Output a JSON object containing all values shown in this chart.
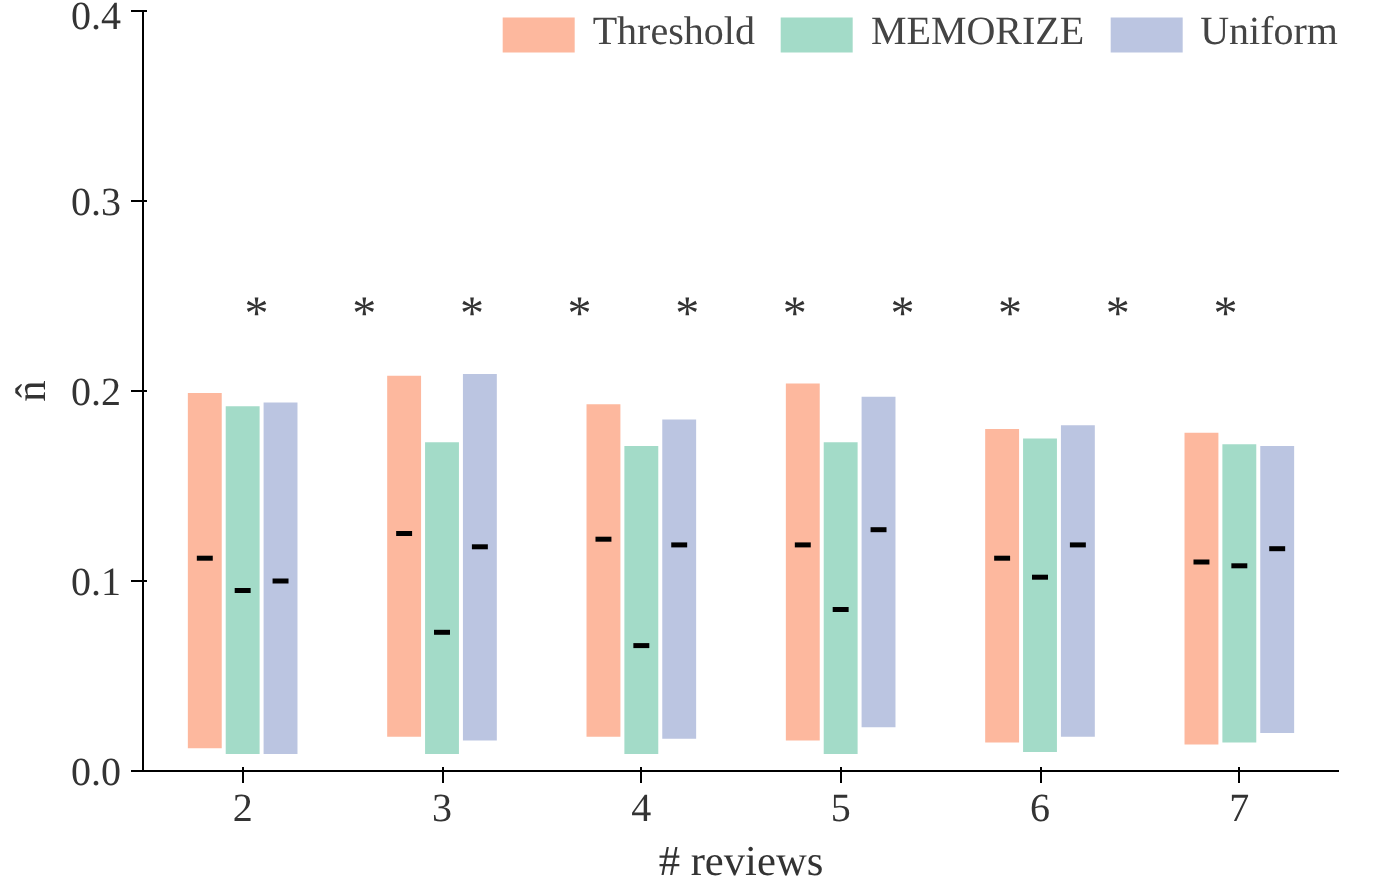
{
  "chart_data": {
    "type": "box",
    "xlabel": "# reviews",
    "ylabel": "n̂",
    "x": [
      2,
      3,
      4,
      5,
      6,
      7
    ],
    "xlim": [
      1.5,
      7.5
    ],
    "xticks": [
      2,
      3,
      4,
      5,
      6,
      7
    ],
    "ylim": [
      0,
      0.4
    ],
    "yticks": [
      {
        "value": 0,
        "label": "0.0"
      },
      0.1,
      0.2,
      0.3,
      0.4
    ],
    "grid": false,
    "legend": "top",
    "series": [
      {
        "name": "Threshold",
        "color": "#fdb89e",
        "boxes": [
          {
            "low": 0.012,
            "q1": 0.012,
            "median": 0.112,
            "q3": 0.199,
            "high": 0.199
          },
          {
            "low": 0.018,
            "q1": 0.018,
            "median": 0.125,
            "q3": 0.208,
            "high": 0.208
          },
          {
            "low": 0.018,
            "q1": 0.018,
            "median": 0.122,
            "q3": 0.193,
            "high": 0.193
          },
          {
            "low": 0.016,
            "q1": 0.016,
            "median": 0.119,
            "q3": 0.204,
            "high": 0.204
          },
          {
            "low": 0.015,
            "q1": 0.015,
            "median": 0.112,
            "q3": 0.18,
            "high": 0.18
          },
          {
            "low": 0.014,
            "q1": 0.014,
            "median": 0.11,
            "q3": 0.178,
            "high": 0.178
          }
        ]
      },
      {
        "name": "MEMORIZE",
        "color": "#a3dbc8",
        "boxes": [
          {
            "low": 0.009,
            "q1": 0.009,
            "median": 0.095,
            "q3": 0.192,
            "high": 0.192
          },
          {
            "low": 0.009,
            "q1": 0.009,
            "median": 0.073,
            "q3": 0.173,
            "high": 0.173
          },
          {
            "low": 0.009,
            "q1": 0.009,
            "median": 0.066,
            "q3": 0.171,
            "high": 0.171
          },
          {
            "low": 0.009,
            "q1": 0.009,
            "median": 0.085,
            "q3": 0.173,
            "high": 0.173
          },
          {
            "low": 0.01,
            "q1": 0.01,
            "median": 0.102,
            "q3": 0.175,
            "high": 0.175
          },
          {
            "low": 0.015,
            "q1": 0.015,
            "median": 0.108,
            "q3": 0.172,
            "high": 0.172
          }
        ]
      },
      {
        "name": "Uniform",
        "color": "#bbc5e1",
        "boxes": [
          {
            "low": 0.009,
            "q1": 0.009,
            "median": 0.1,
            "q3": 0.194,
            "high": 0.194
          },
          {
            "low": 0.016,
            "q1": 0.016,
            "median": 0.118,
            "q3": 0.209,
            "high": 0.209
          },
          {
            "low": 0.017,
            "q1": 0.017,
            "median": 0.119,
            "q3": 0.185,
            "high": 0.185
          },
          {
            "low": 0.023,
            "q1": 0.023,
            "median": 0.127,
            "q3": 0.197,
            "high": 0.197
          },
          {
            "low": 0.018,
            "q1": 0.018,
            "median": 0.119,
            "q3": 0.182,
            "high": 0.182
          },
          {
            "low": 0.02,
            "q1": 0.02,
            "median": 0.117,
            "q3": 0.171,
            "high": 0.171
          }
        ]
      }
    ],
    "annotations": [
      "*",
      "*",
      "*",
      "*",
      "*",
      "*",
      "*",
      "*",
      "*",
      "*"
    ]
  }
}
